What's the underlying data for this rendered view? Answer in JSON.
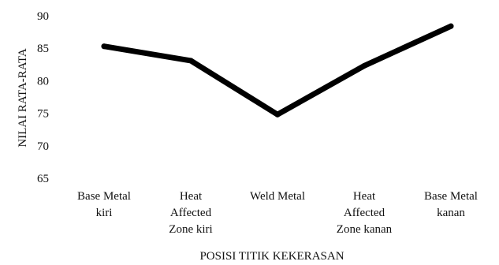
{
  "chart_data": {
    "type": "line",
    "title": "",
    "xlabel": "POSISI TITIK KEKERASAN",
    "ylabel": "NILAI RATA-RATA",
    "ylim": [
      65,
      90
    ],
    "yticks": [
      65,
      70,
      75,
      80,
      85,
      90
    ],
    "grid": false,
    "legend": "none",
    "line_color": "#000000",
    "categories": [
      [
        "Base Metal",
        "kiri"
      ],
      [
        "Heat",
        "Affected",
        "Zone kiri"
      ],
      [
        "Weld Metal"
      ],
      [
        "Heat",
        "Affected",
        "Zone kanan"
      ],
      [
        "Base Metal",
        "kanan"
      ]
    ],
    "series": [
      {
        "values": [
          85.3,
          83.1,
          74.8,
          82.3,
          88.4
        ]
      }
    ]
  }
}
